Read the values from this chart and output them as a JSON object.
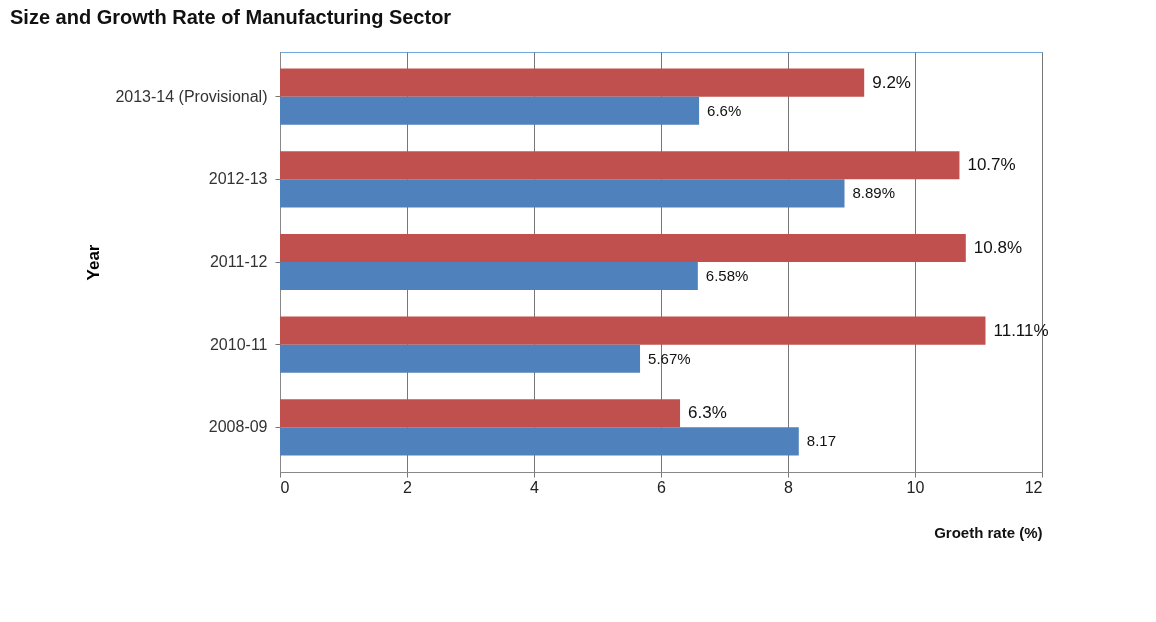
{
  "chart_data": {
    "type": "bar",
    "orientation": "horizontal",
    "title": "Size and Growth Rate of Manufacturing Sector",
    "xlabel": "Groeth rate (%)",
    "ylabel": "Year",
    "categories": [
      "2013-14 (Provisional)",
      "2012-13",
      "2011-12",
      "2010-11",
      "2008-09"
    ],
    "series": [
      {
        "color": "#c0504d",
        "values": [
          9.2,
          10.7,
          10.8,
          11.11,
          6.3
        ],
        "value_labels": [
          "9.2%",
          "10.7%",
          "10.8%",
          "11.11%",
          "6.3%"
        ]
      },
      {
        "color": "#4f81bd",
        "values": [
          6.6,
          8.89,
          6.58,
          5.67,
          8.17
        ],
        "value_labels": [
          "6.6%",
          "8.89%",
          "6.58%",
          "5.67%",
          "8.17"
        ]
      }
    ],
    "xlim": [
      0,
      12
    ],
    "xticks": [
      0,
      2,
      4,
      6,
      8,
      10,
      12
    ],
    "grid": "x",
    "legend": false
  }
}
